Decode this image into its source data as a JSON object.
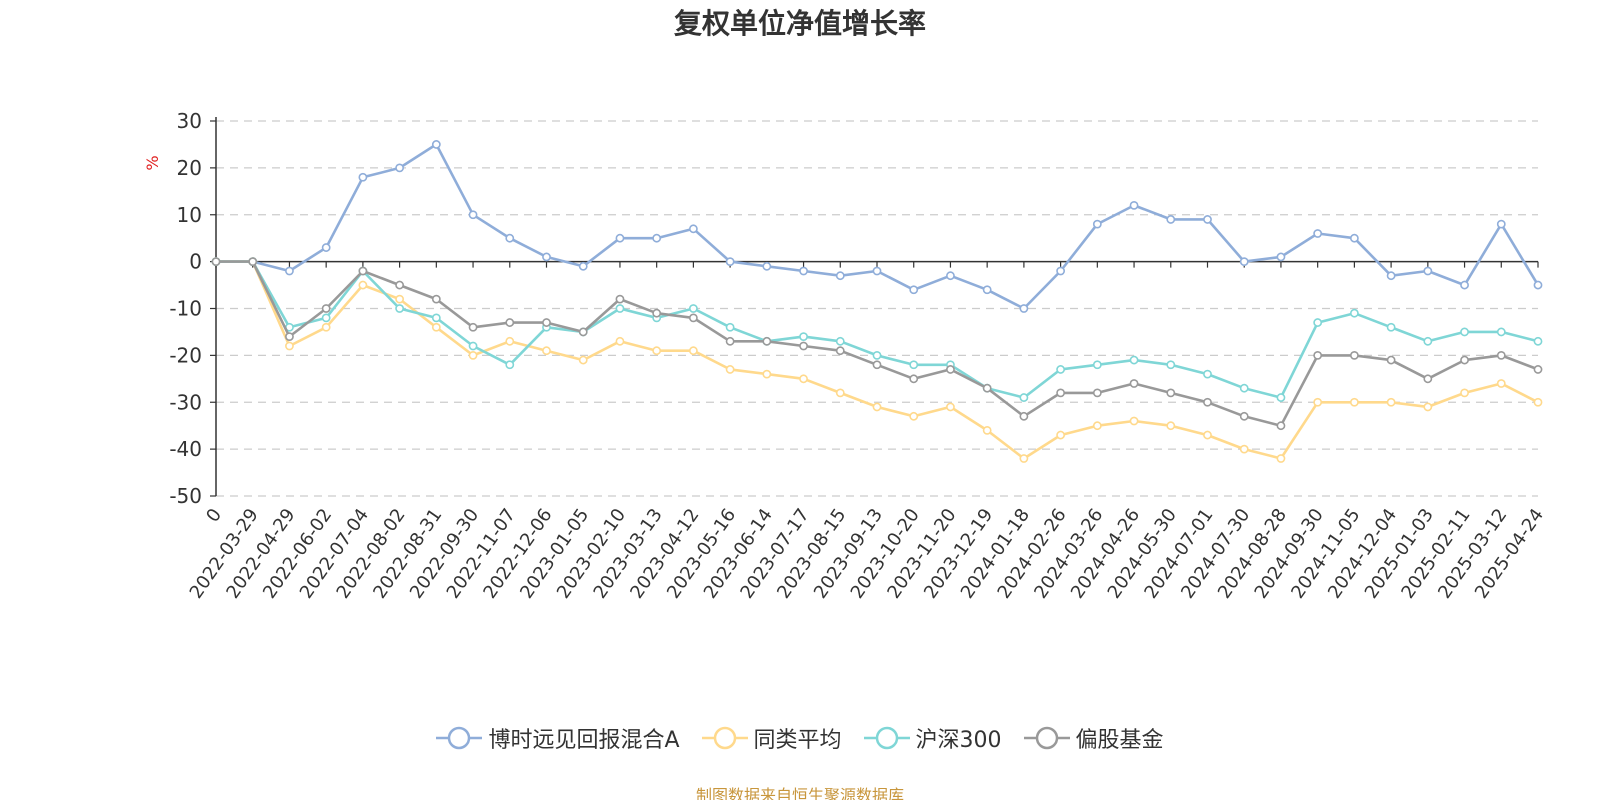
{
  "source_note": "制图数据来自恒生聚源数据库",
  "chart_data": {
    "type": "line",
    "title": "复权单位净值增长率",
    "ylabel": "%",
    "ylim": [
      -50,
      30
    ],
    "yticks": [
      30,
      20,
      10,
      0,
      -10,
      -20,
      -30,
      -40,
      -50
    ],
    "grid": true,
    "legend_position": "bottom",
    "x_start_label": "0",
    "x": [
      "2022-03-29",
      "2022-04-29",
      "2022-06-02",
      "2022-07-04",
      "2022-08-02",
      "2022-08-31",
      "2022-09-30",
      "2022-11-07",
      "2022-12-06",
      "2023-01-05",
      "2023-02-10",
      "2023-03-13",
      "2023-04-12",
      "2023-05-16",
      "2023-06-14",
      "2023-07-17",
      "2023-08-15",
      "2023-09-13",
      "2023-10-20",
      "2023-11-20",
      "2023-12-19",
      "2024-01-18",
      "2024-02-26",
      "2024-03-26",
      "2024-04-26",
      "2024-05-30",
      "2024-07-01",
      "2024-07-30",
      "2024-08-28",
      "2024-09-30",
      "2024-11-05",
      "2024-12-04",
      "2025-01-03",
      "2025-02-11",
      "2025-03-12",
      "2025-04-24"
    ],
    "series": [
      {
        "name": "博时远见回报混合A",
        "color": "#8fadd9",
        "values": [
          0,
          -2,
          3,
          18,
          20,
          25,
          10,
          5,
          1,
          -1,
          5,
          5,
          7,
          0,
          -1,
          -2,
          -3,
          -2,
          -6,
          -3,
          -6,
          -10,
          -2,
          8,
          12,
          9,
          9,
          0,
          1,
          6,
          5,
          -3,
          -2,
          -5,
          8,
          -5
        ]
      },
      {
        "name": "同类平均",
        "color": "#ffd98c",
        "values": [
          0,
          -18,
          -14,
          -5,
          -8,
          -14,
          -20,
          -17,
          -19,
          -21,
          -17,
          -19,
          -19,
          -23,
          -24,
          -25,
          -28,
          -31,
          -33,
          -31,
          -36,
          -42,
          -37,
          -35,
          -34,
          -35,
          -37,
          -40,
          -42,
          -30,
          -30,
          -30,
          -31,
          -28,
          -26,
          -30
        ]
      },
      {
        "name": "沪深300",
        "color": "#7fd6d6",
        "values": [
          0,
          -14,
          -12,
          -2,
          -10,
          -12,
          -18,
          -22,
          -14,
          -15,
          -10,
          -12,
          -10,
          -14,
          -17,
          -16,
          -17,
          -20,
          -22,
          -22,
          -27,
          -29,
          -23,
          -22,
          -21,
          -22,
          -24,
          -27,
          -29,
          -13,
          -11,
          -14,
          -17,
          -15,
          -15,
          -17
        ]
      },
      {
        "name": "偏股基金",
        "color": "#999999",
        "values": [
          0,
          -16,
          -10,
          -2,
          -5,
          -8,
          -14,
          -13,
          -13,
          -15,
          -8,
          -11,
          -12,
          -17,
          -17,
          -18,
          -19,
          -22,
          -25,
          -23,
          -27,
          -33,
          -28,
          -28,
          -26,
          -28,
          -30,
          -33,
          -35,
          -20,
          -20,
          -21,
          -25,
          -21,
          -20,
          -23
        ]
      }
    ]
  }
}
